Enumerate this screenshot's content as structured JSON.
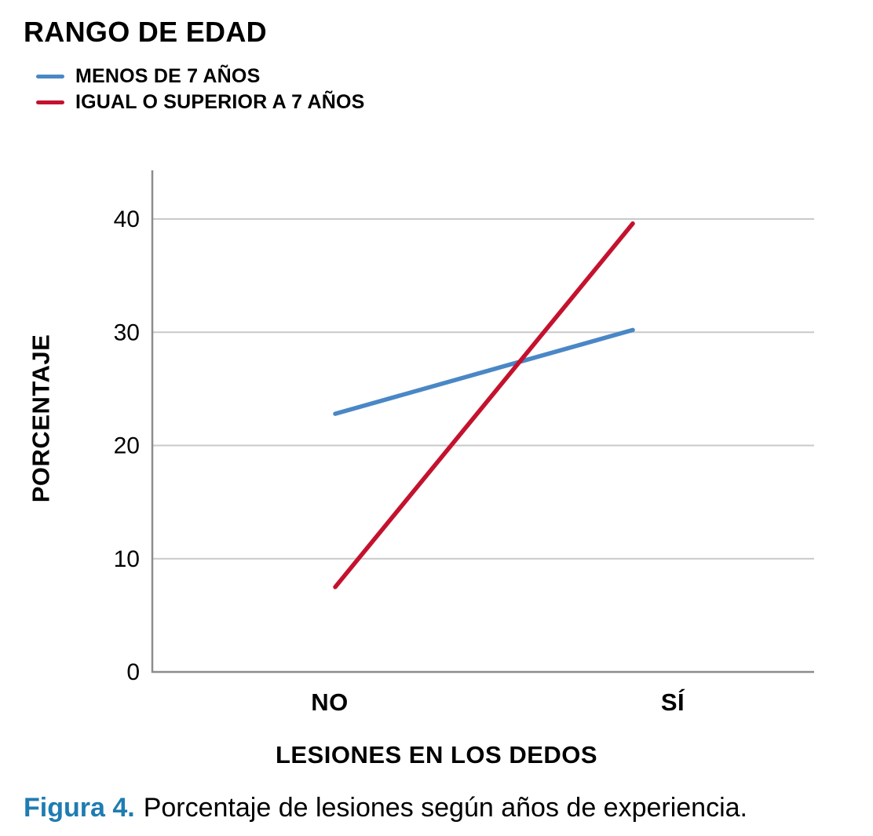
{
  "legend": {
    "title": "RANGO DE EDAD",
    "items": [
      {
        "label": "MENOS DE 7 AÑOS",
        "color": "#4A87C6"
      },
      {
        "label": "IGUAL O SUPERIOR A 7 AÑOS",
        "color": "#C4122E"
      }
    ]
  },
  "chart_data": {
    "type": "line",
    "categories": [
      "NO",
      "SÍ"
    ],
    "series": [
      {
        "name": "MENOS DE 7 AÑOS",
        "color": "#4A87C6",
        "values": [
          22.8,
          30.2
        ]
      },
      {
        "name": "IGUAL O SUPERIOR A 7 AÑOS",
        "color": "#C4122E",
        "values": [
          7.5,
          39.6
        ]
      }
    ],
    "xlabel": "LESIONES EN LOS DEDOS",
    "ylabel": "PORCENTAJE",
    "ylim": [
      0,
      44.3
    ],
    "yticks": [
      0,
      10,
      20,
      30,
      40
    ],
    "grid": "horizontal",
    "legend_position": "top-left"
  },
  "caption": {
    "label": "Figura 4.",
    "text": "Porcentaje de lesiones según años de experiencia.",
    "label_color": "#1F7CB2"
  },
  "colors": {
    "grid": "#C9C9C9",
    "axis": "#8C8C8C",
    "text": "#000000",
    "background": "#FFFFFF"
  }
}
